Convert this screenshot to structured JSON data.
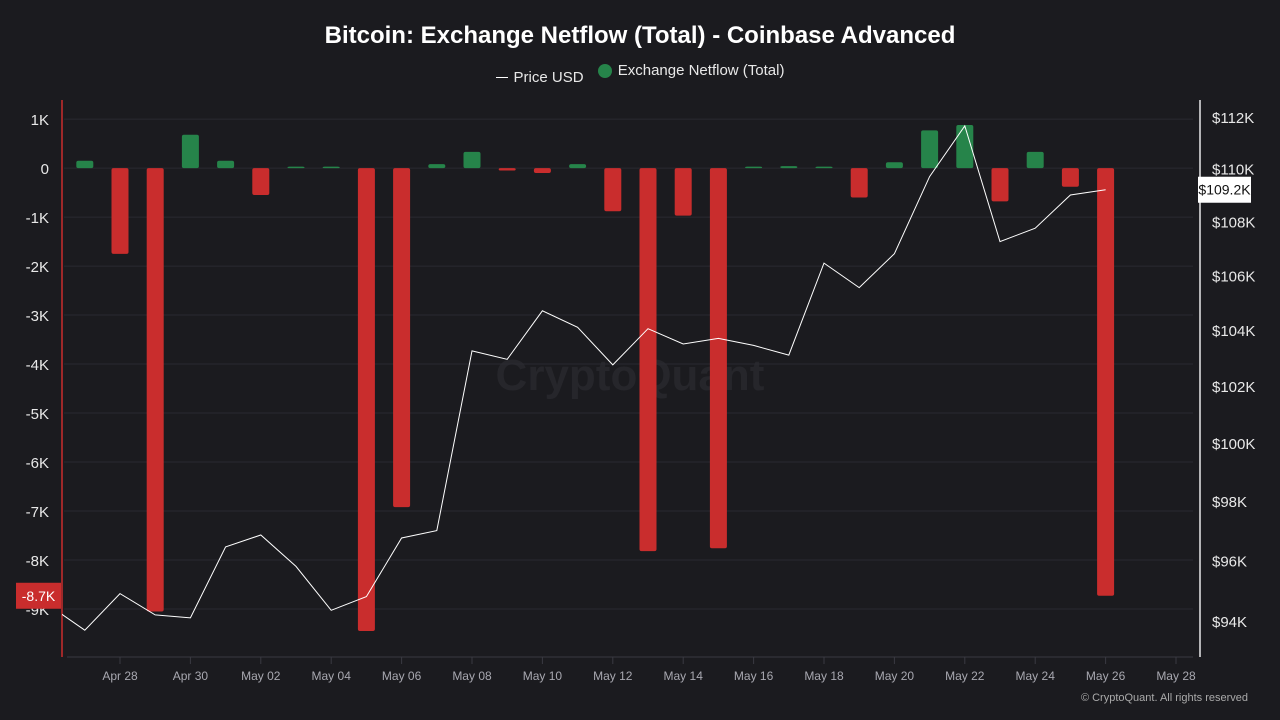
{
  "chart_data": {
    "type": "bar+line",
    "title": "Bitcoin: Exchange Netflow (Total) - Coinbase Advanced",
    "legend": {
      "placement": "top-center"
    },
    "x": [
      "Apr 26",
      "Apr 27",
      "Apr 28",
      "Apr 29",
      "Apr 30",
      "May 01",
      "May 02",
      "May 03",
      "May 04",
      "May 05",
      "May 06",
      "May 07",
      "May 08",
      "May 09",
      "May 10",
      "May 11",
      "May 12",
      "May 13",
      "May 14",
      "May 15",
      "May 16",
      "May 17",
      "May 18",
      "May 19",
      "May 20",
      "May 21",
      "May 22",
      "May 23",
      "May 24",
      "May 25",
      "May 26"
    ],
    "x_tick_labels": [
      "Apr 28",
      "Apr 30",
      "May 02",
      "May 04",
      "May 06",
      "May 08",
      "May 10",
      "May 12",
      "May 14",
      "May 16",
      "May 18",
      "May 20",
      "May 22",
      "May 24",
      "May 26",
      "May 28"
    ],
    "x_range": [
      "Apr 26",
      "May 28"
    ],
    "series": [
      {
        "name": "Price USD",
        "type": "line",
        "axis": "right",
        "color": "#ffffff",
        "values": [
          94500,
          93700,
          94900,
          94200,
          94100,
          96450,
          96850,
          95800,
          94350,
          94800,
          96750,
          97000,
          103250,
          102950,
          104700,
          104100,
          102750,
          104050,
          103500,
          103700,
          103450,
          103100,
          106450,
          105550,
          106800,
          109700,
          111650,
          107250,
          107750,
          109000,
          109200
        ]
      },
      {
        "name": "Exchange Netflow (Total)",
        "type": "bar",
        "axis": "left",
        "positive_color": "#26844a",
        "negative_color": "#c92d2d",
        "values": [
          null,
          150,
          -1750,
          -9050,
          680,
          150,
          -550,
          20,
          20,
          -9450,
          -6920,
          80,
          330,
          -50,
          -100,
          80,
          -880,
          -7820,
          -970,
          -7760,
          20,
          40,
          10,
          -600,
          120,
          770,
          880,
          -680,
          330,
          -380,
          -8730
        ]
      }
    ],
    "left_axis": {
      "ticks": [
        "1K",
        "0",
        "-1K",
        "-2K",
        "-3K",
        "-4K",
        "-5K",
        "-6K",
        "-7K",
        "-8K",
        "-9K"
      ],
      "tick_values": [
        1000,
        0,
        -1000,
        -2000,
        -3000,
        -4000,
        -5000,
        -6000,
        -7000,
        -8000,
        -9000
      ],
      "range": [
        -9980,
        1390
      ],
      "highlight_label": "-8.7K",
      "grid": true
    },
    "right_axis": {
      "scale": "log",
      "ticks": [
        "$112K",
        "$110K",
        "$108K",
        "$106K",
        "$104K",
        "$102K",
        "$100K",
        "$98K",
        "$96K",
        "$94K"
      ],
      "tick_values": [
        112000,
        110000,
        108000,
        106000,
        104000,
        102000,
        100000,
        98000,
        96000,
        94000
      ],
      "range": [
        92830,
        112660
      ],
      "highlight_label": "$109.2K"
    },
    "watermark": "CryptoQuant",
    "credit": "© CryptoQuant. All rights reserved"
  }
}
